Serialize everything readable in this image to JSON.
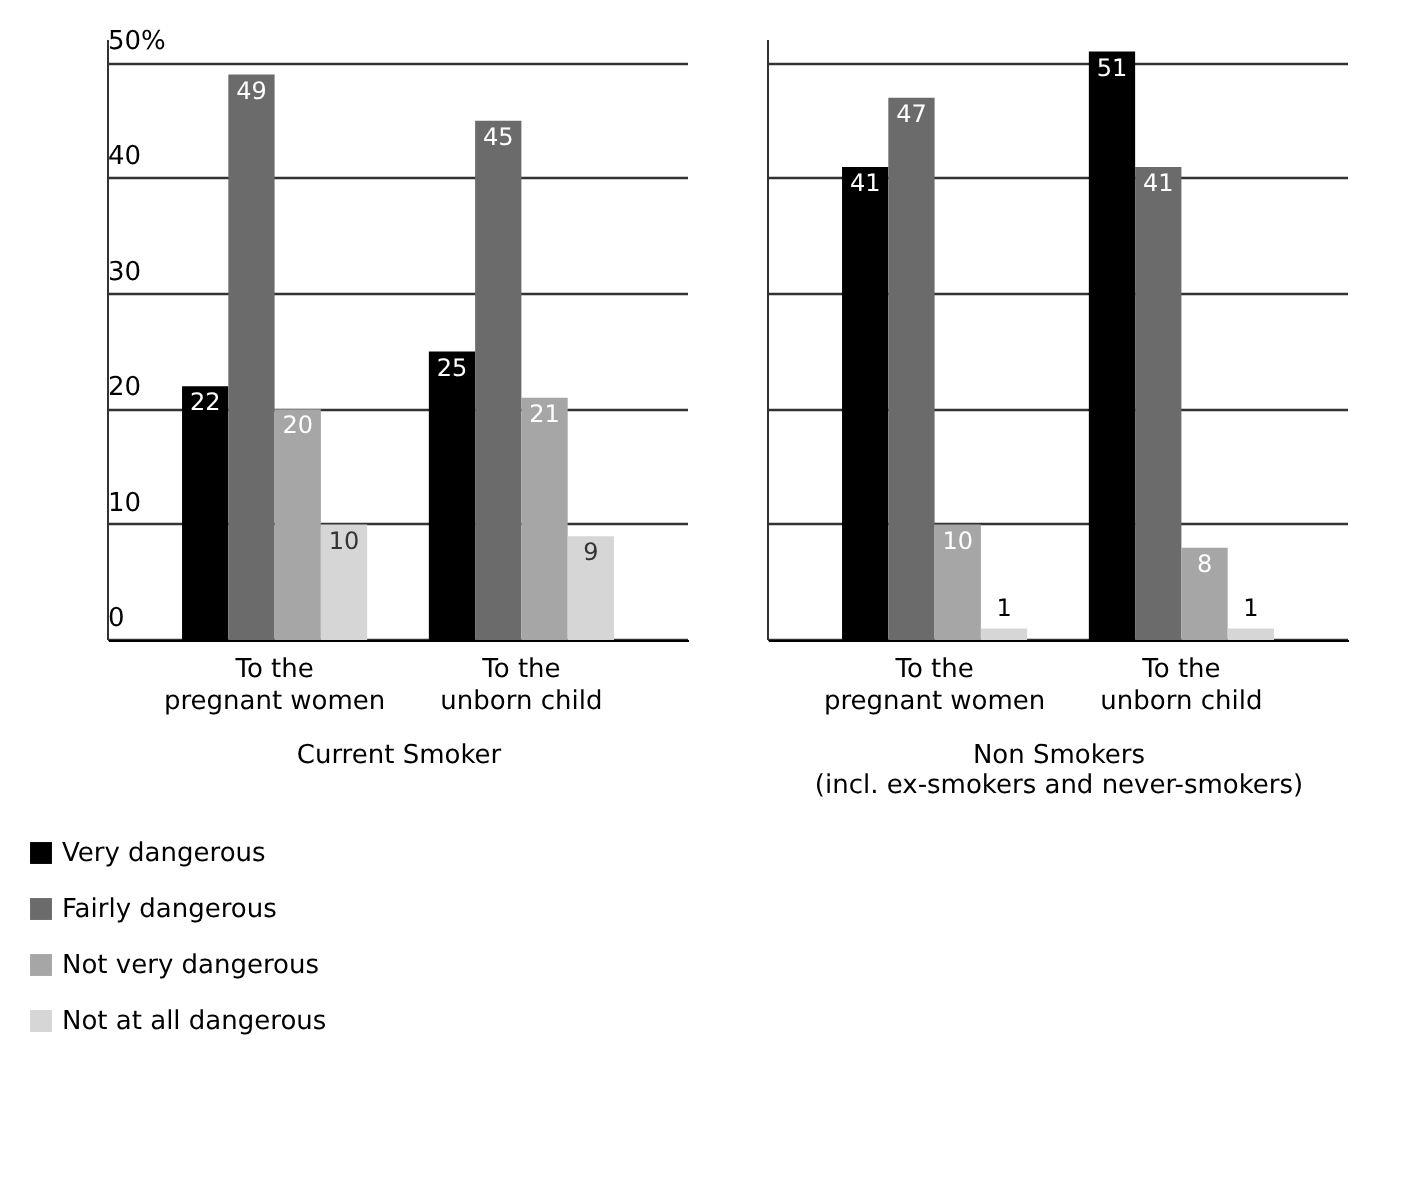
{
  "chart_data": [
    {
      "type": "bar",
      "xlabel": "Current Smoker",
      "categories": [
        "To the\npregnant women",
        "To the\nunborn child"
      ],
      "ylim": [
        0,
        52
      ],
      "yticks": [
        0,
        10,
        20,
        30,
        40,
        {
          "value": 50,
          "label": "50%"
        }
      ],
      "grid": "y",
      "data_labels": true,
      "legend": "bottom left",
      "series": [
        {
          "name": "Very dangerous",
          "color": "#000000",
          "values": [
            22,
            25
          ]
        },
        {
          "name": "Fairly dangerous",
          "color": "#6b6b6b",
          "values": [
            49,
            45
          ]
        },
        {
          "name": "Not very dangerous",
          "color": "#a6a6a6",
          "values": [
            20,
            21
          ]
        },
        {
          "name": "Not at all dangerous",
          "color": "#d6d6d6",
          "values": [
            10,
            9
          ]
        }
      ]
    },
    {
      "type": "bar",
      "xlabel": "Non Smokers\n(incl. ex-smokers and never-smokers)",
      "categories": [
        "To the\npregnant women",
        "To the\nunborn child"
      ],
      "ylim": [
        0,
        52
      ],
      "yticks": [
        0,
        10,
        20,
        30,
        40,
        50
      ],
      "grid": "y",
      "data_labels": true,
      "tick_labels": "x",
      "series": [
        {
          "color": "#000000",
          "values": [
            41,
            51
          ]
        },
        {
          "color": "#6b6b6b",
          "values": [
            47,
            41
          ]
        },
        {
          "color": "#a6a6a6",
          "values": [
            10,
            8
          ]
        },
        {
          "color": "#d6d6d6",
          "values": [
            1,
            1
          ]
        }
      ]
    }
  ]
}
